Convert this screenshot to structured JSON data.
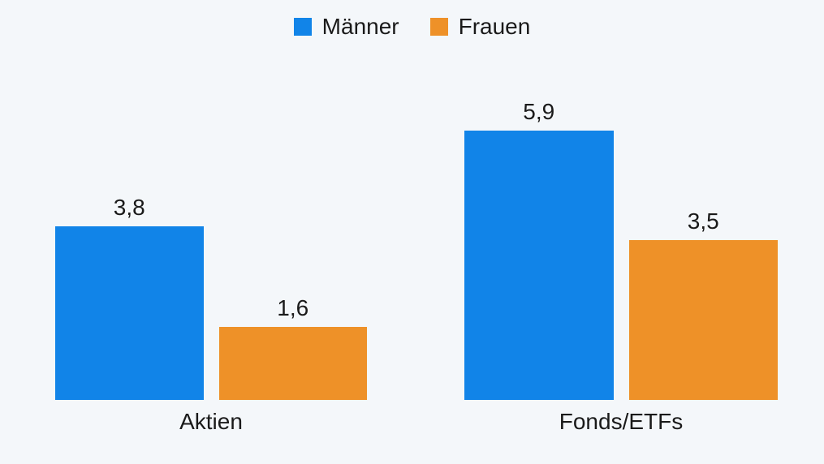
{
  "colors": {
    "background": "#f4f7fa",
    "text": "#1a1a1a",
    "maenner_blue": "#1184e8",
    "frauen_orange": "#ee9128"
  },
  "chart_data": {
    "type": "bar",
    "title": "",
    "categories": [
      "Aktien",
      "Fonds/ETFs"
    ],
    "series": [
      {
        "name": "Männer",
        "color": "#1184e8",
        "values": [
          3.8,
          5.9
        ],
        "labels": [
          "3,8",
          "5,9"
        ]
      },
      {
        "name": "Frauen",
        "color": "#ee9128",
        "values": [
          1.6,
          3.5
        ],
        "labels": [
          "1,6",
          "3,5"
        ]
      }
    ],
    "xlabel": "",
    "ylabel": "",
    "ylim": [
      0,
      7
    ],
    "grid": false,
    "axes_visible": false,
    "legend_position": "top-center",
    "value_label_format": "decimal-comma"
  }
}
